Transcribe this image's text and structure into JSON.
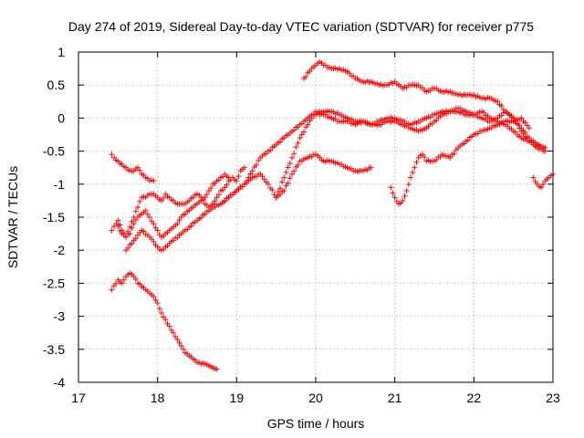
{
  "chart_data": {
    "type": "scatter",
    "title": "Day 274 of 2019, Sidereal Day-to-day VTEC variation (SDTVAR) for receiver p775",
    "xlabel": "GPS time / hours",
    "ylabel": "SDTVAR / TECUs",
    "xlim": [
      17,
      23
    ],
    "ylim": [
      -4,
      1
    ],
    "xticks": [
      17,
      18,
      19,
      20,
      21,
      22,
      23
    ],
    "yticks": [
      -4,
      -3.5,
      -3,
      -2.5,
      -2,
      -1.5,
      -1,
      -0.5,
      0,
      0.5,
      1
    ],
    "ytick_labels": [
      "-4",
      "-3.5",
      "-3",
      "-2.5",
      "-2",
      "-1.5",
      "-1",
      "-0.5",
      "0",
      "0.5",
      "1"
    ],
    "grid": true,
    "marker": "+",
    "color": "#ff0000",
    "series": [
      {
        "name": "trace-a",
        "x": [
          17.42,
          17.5,
          17.55,
          17.6,
          17.65,
          17.7,
          17.75,
          17.8,
          17.85,
          17.9,
          17.95,
          18.0,
          18.05,
          18.1,
          18.15,
          18.2,
          18.25,
          18.3,
          18.35,
          18.4,
          18.45,
          18.5,
          18.55,
          18.6,
          18.65,
          18.7,
          18.75
        ],
        "y": [
          -2.6,
          -2.45,
          -2.5,
          -2.4,
          -2.35,
          -2.4,
          -2.5,
          -2.55,
          -2.6,
          -2.65,
          -2.7,
          -2.8,
          -2.95,
          -3.05,
          -3.15,
          -3.25,
          -3.35,
          -3.45,
          -3.55,
          -3.6,
          -3.65,
          -3.7,
          -3.72,
          -3.72,
          -3.75,
          -3.78,
          -3.8
        ]
      },
      {
        "name": "trace-b",
        "x": [
          17.42,
          17.45,
          17.5,
          17.55,
          17.6,
          17.65,
          17.7,
          17.75,
          17.8,
          17.85,
          17.9,
          17.95
        ],
        "y": [
          -0.55,
          -0.6,
          -0.65,
          -0.7,
          -0.75,
          -0.8,
          -0.8,
          -0.75,
          -0.85,
          -0.9,
          -0.95,
          -0.95
        ]
      },
      {
        "name": "trace-c",
        "x": [
          17.42,
          17.48,
          17.55,
          17.6,
          17.65,
          17.7,
          17.75,
          17.8,
          17.85,
          17.9,
          17.95,
          18.0,
          18.05,
          18.1,
          18.15,
          18.2,
          18.25,
          18.3,
          18.35,
          18.4,
          18.45,
          18.5,
          18.55,
          18.6,
          18.65,
          18.7,
          18.75,
          18.8,
          18.85,
          18.9,
          18.95,
          19.0,
          19.05,
          19.1
        ],
        "y": [
          -1.7,
          -1.6,
          -1.75,
          -1.8,
          -1.65,
          -1.5,
          -1.35,
          -1.2,
          -1.2,
          -1.15,
          -1.15,
          -1.2,
          -1.25,
          -1.15,
          -1.2,
          -1.25,
          -1.3,
          -1.3,
          -1.3,
          -1.25,
          -1.2,
          -1.15,
          -1.2,
          -1.3,
          -1.35,
          -1.3,
          -1.2,
          -1.1,
          -1.05,
          -0.95,
          -0.9,
          -0.95,
          -0.8,
          -0.75
        ]
      },
      {
        "name": "trace-d",
        "x": [
          17.5,
          17.55,
          17.6,
          17.65,
          17.7,
          17.75,
          17.8,
          17.85,
          17.9,
          17.95,
          18.0,
          18.05,
          18.1,
          18.15,
          18.2,
          18.25,
          18.3,
          18.35,
          18.4,
          18.45,
          18.5,
          18.55,
          18.6,
          18.65,
          18.7,
          18.75,
          18.8,
          18.85,
          18.9
        ],
        "y": [
          -1.55,
          -1.7,
          -1.8,
          -1.75,
          -1.6,
          -1.5,
          -1.45,
          -1.4,
          -1.5,
          -1.6,
          -1.7,
          -1.8,
          -1.75,
          -1.7,
          -1.65,
          -1.6,
          -1.5,
          -1.45,
          -1.4,
          -1.35,
          -1.3,
          -1.25,
          -1.2,
          -1.1,
          -1.0,
          -0.95,
          -0.9,
          -0.85,
          -0.9
        ]
      },
      {
        "name": "trace-e",
        "x": [
          17.6,
          17.7,
          17.8,
          17.9,
          18.0,
          18.05,
          18.1,
          18.2,
          18.3,
          18.4,
          18.5,
          18.6,
          18.7,
          18.8,
          18.9,
          19.0,
          19.1,
          19.2,
          19.3,
          19.4,
          19.5,
          19.6,
          19.7,
          19.8,
          19.9,
          20.0,
          20.1,
          20.2,
          20.3,
          20.4,
          20.5,
          20.6,
          20.7
        ],
        "y": [
          -2.0,
          -1.85,
          -1.7,
          -1.8,
          -1.95,
          -2.0,
          -1.95,
          -1.85,
          -1.75,
          -1.65,
          -1.55,
          -1.45,
          -1.35,
          -1.3,
          -1.2,
          -1.1,
          -1.0,
          -0.9,
          -0.85,
          -1.0,
          -1.2,
          -1.1,
          -0.85,
          -0.65,
          -0.6,
          -0.55,
          -0.65,
          -0.65,
          -0.7,
          -0.75,
          -0.8,
          -0.8,
          -0.75
        ]
      },
      {
        "name": "trace-f",
        "x": [
          18.8,
          18.9,
          19.0,
          19.1,
          19.2,
          19.3,
          19.4,
          19.5,
          19.6,
          19.7,
          19.8,
          19.85,
          19.9,
          19.95,
          20.0,
          20.05,
          20.1,
          20.2,
          20.3,
          20.4,
          20.5,
          20.6,
          20.7,
          20.8,
          20.9,
          21.0,
          21.1,
          21.2,
          21.3,
          21.4,
          21.5,
          21.6,
          21.7,
          21.8,
          21.9,
          22.0,
          22.1,
          22.2,
          22.3,
          22.4,
          22.5,
          22.6,
          22.7,
          22.8,
          22.9
        ],
        "y": [
          -1.3,
          -1.2,
          -1.1,
          -1.0,
          -0.8,
          -0.6,
          -0.5,
          -0.4,
          -0.3,
          -0.2,
          -0.1,
          -0.05,
          0.0,
          0.05,
          0.05,
          0.1,
          0.05,
          0.0,
          -0.05,
          -0.05,
          -0.1,
          -0.05,
          -0.1,
          -0.05,
          0.0,
          0.0,
          -0.05,
          -0.1,
          -0.05,
          0.0,
          0.05,
          0.1,
          0.1,
          0.15,
          0.1,
          0.05,
          0.1,
          0.0,
          -0.05,
          -0.1,
          -0.2,
          -0.3,
          -0.35,
          -0.4,
          -0.45
        ]
      },
      {
        "name": "trace-g",
        "x": [
          19.5,
          19.6,
          19.7,
          19.8,
          19.9,
          20.0,
          20.05,
          20.1,
          20.2,
          20.3,
          20.4,
          20.5,
          20.6,
          20.7,
          20.8,
          20.9,
          21.0,
          21.1,
          21.2,
          21.3,
          21.4,
          21.5,
          21.6,
          21.7,
          21.8,
          21.9,
          22.0,
          22.1,
          22.2,
          22.3,
          22.4,
          22.5,
          22.6,
          22.7,
          22.8,
          22.9
        ],
        "y": [
          -1.2,
          -0.9,
          -0.6,
          -0.3,
          -0.1,
          0.1,
          0.05,
          0.1,
          0.1,
          0.05,
          0.0,
          -0.05,
          -0.05,
          -0.1,
          -0.1,
          -0.05,
          -0.05,
          -0.1,
          -0.15,
          -0.2,
          -0.15,
          -0.05,
          0.05,
          0.1,
          0.1,
          0.05,
          0.05,
          0.0,
          -0.05,
          0.0,
          0.1,
          0.0,
          -0.2,
          -0.35,
          -0.45,
          -0.5
        ]
      },
      {
        "name": "trace-h",
        "x": [
          19.85,
          19.95,
          20.0,
          20.05,
          20.1,
          20.2,
          20.3,
          20.4,
          20.5,
          20.6,
          20.7,
          20.8,
          20.9,
          21.0,
          21.1,
          21.2,
          21.3,
          21.4,
          21.5,
          21.6,
          21.7,
          21.8,
          21.9,
          22.0,
          22.1,
          22.2,
          22.3,
          22.4,
          22.5,
          22.6,
          22.7,
          22.8,
          22.9
        ],
        "y": [
          0.6,
          0.75,
          0.8,
          0.85,
          0.8,
          0.75,
          0.75,
          0.7,
          0.6,
          0.55,
          0.55,
          0.5,
          0.5,
          0.55,
          0.45,
          0.5,
          0.5,
          0.4,
          0.45,
          0.4,
          0.4,
          0.35,
          0.35,
          0.35,
          0.3,
          0.3,
          0.25,
          0.1,
          0.0,
          -0.15,
          -0.3,
          -0.4,
          -0.5
        ]
      },
      {
        "name": "trace-i",
        "x": [
          20.95,
          21.0,
          21.05,
          21.1,
          21.15,
          21.2,
          21.25,
          21.3,
          21.35,
          21.4,
          21.5,
          21.6,
          21.7,
          21.8,
          21.9,
          22.0,
          22.1,
          22.2,
          22.3,
          22.4,
          22.5,
          22.6,
          22.7
        ],
        "y": [
          -1.05,
          -1.2,
          -1.3,
          -1.25,
          -1.1,
          -0.9,
          -0.75,
          -0.6,
          -0.55,
          -0.65,
          -0.65,
          -0.55,
          -0.6,
          -0.45,
          -0.35,
          -0.25,
          -0.2,
          -0.15,
          -0.1,
          -0.05,
          -0.05,
          0.0,
          -0.15
        ]
      },
      {
        "name": "trace-j",
        "x": [
          22.75,
          22.8,
          22.85,
          22.9,
          22.95,
          23.0
        ],
        "y": [
          -0.9,
          -1.0,
          -1.05,
          -0.95,
          -0.9,
          -0.85
        ]
      }
    ]
  }
}
